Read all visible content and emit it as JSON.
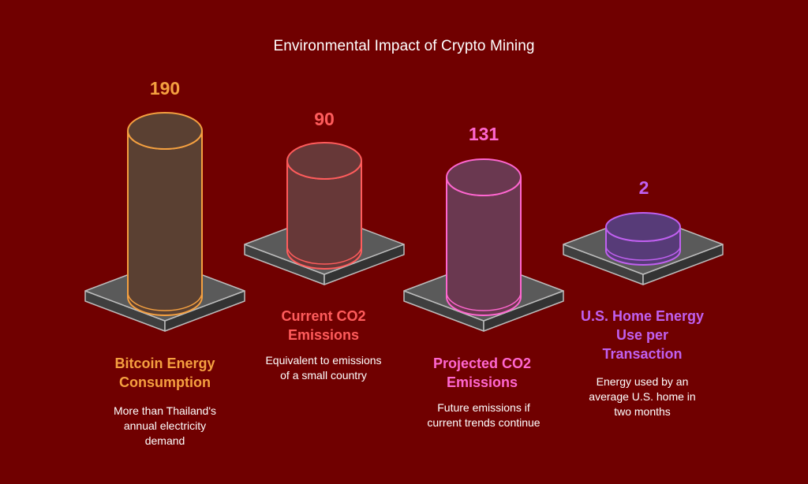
{
  "title": "Environmental Impact of Crypto Mining",
  "items": [
    {
      "value": "190",
      "label_lines": [
        "Bitcoin Energy",
        "Consumption"
      ],
      "desc_lines": [
        "More than Thailand's",
        "annual electricity",
        "demand"
      ],
      "color": "#f5a040",
      "fill": "#5a4032"
    },
    {
      "value": "90",
      "label_lines": [
        "Current CO2",
        "Emissions"
      ],
      "desc_lines": [
        "Equivalent to emissions",
        "of a small country"
      ],
      "color": "#ff5c5c",
      "fill": "#673838"
    },
    {
      "value": "131",
      "label_lines": [
        "Projected CO2",
        "Emissions"
      ],
      "desc_lines": [
        "Future emissions if",
        "current trends continue"
      ],
      "color": "#ff66d0",
      "fill": "#6a3850"
    },
    {
      "value": "2",
      "label_lines": [
        "U.S. Home Energy",
        "Use per",
        "Transaction"
      ],
      "desc_lines": [
        "Energy used by an",
        "average U.S. home in",
        "two months"
      ],
      "color": "#c060f0",
      "fill": "#573b78"
    }
  ]
}
